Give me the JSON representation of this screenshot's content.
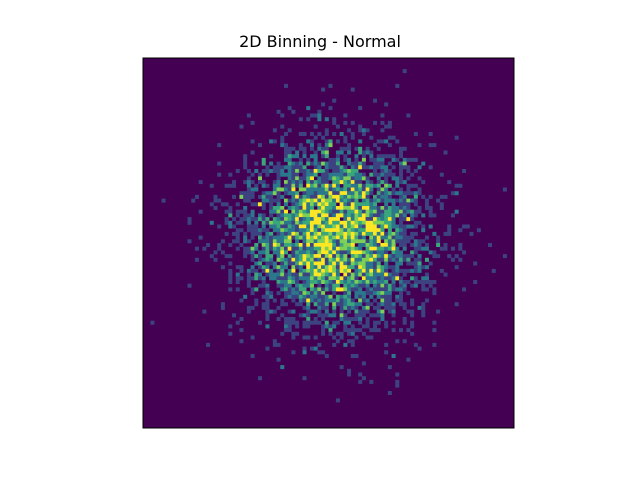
{
  "chart_data": {
    "type": "heatmap",
    "title": "2D Binning - Normal",
    "xlabel": "",
    "ylabel": "",
    "axes_visible": false,
    "grid": false,
    "legend": "none",
    "colormap": "viridis",
    "bins": 100,
    "distribution": "2D normal, centered",
    "count_range": [
      0,
      5
    ],
    "colors": {
      "background": "#440154",
      "low": "#440154",
      "mid_low": "#3b528b",
      "mid": "#21918c",
      "mid_high": "#5ec962",
      "high": "#fde725",
      "frame": "#000000"
    }
  }
}
